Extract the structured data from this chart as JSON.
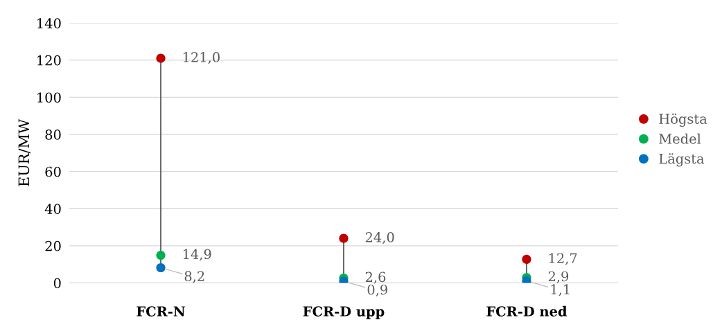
{
  "chart_data": {
    "type": "scatter",
    "ylabel": "EUR/MW",
    "categories": [
      "FCR-N",
      "FCR-D upp",
      "FCR-D ned"
    ],
    "series": [
      {
        "name": "Högsta",
        "color": "#c00000",
        "values": [
          121.0,
          24.0,
          12.7
        ],
        "value_labels": [
          "121,0",
          "24,0",
          "12,7"
        ]
      },
      {
        "name": "Medel",
        "color": "#00b050",
        "values": [
          14.9,
          2.6,
          2.9
        ],
        "value_labels": [
          "14,9",
          "2,6",
          "2,9"
        ]
      },
      {
        "name": "Lägsta",
        "color": "#0070c0",
        "values": [
          8.2,
          0.9,
          1.1
        ],
        "value_labels": [
          "8,2",
          "0,9",
          "1,1"
        ]
      }
    ],
    "ylim": [
      0,
      140
    ],
    "yticks": [
      0,
      20,
      40,
      60,
      80,
      100,
      120,
      140
    ],
    "grid": "y",
    "legend": "right",
    "marker": "circle"
  }
}
